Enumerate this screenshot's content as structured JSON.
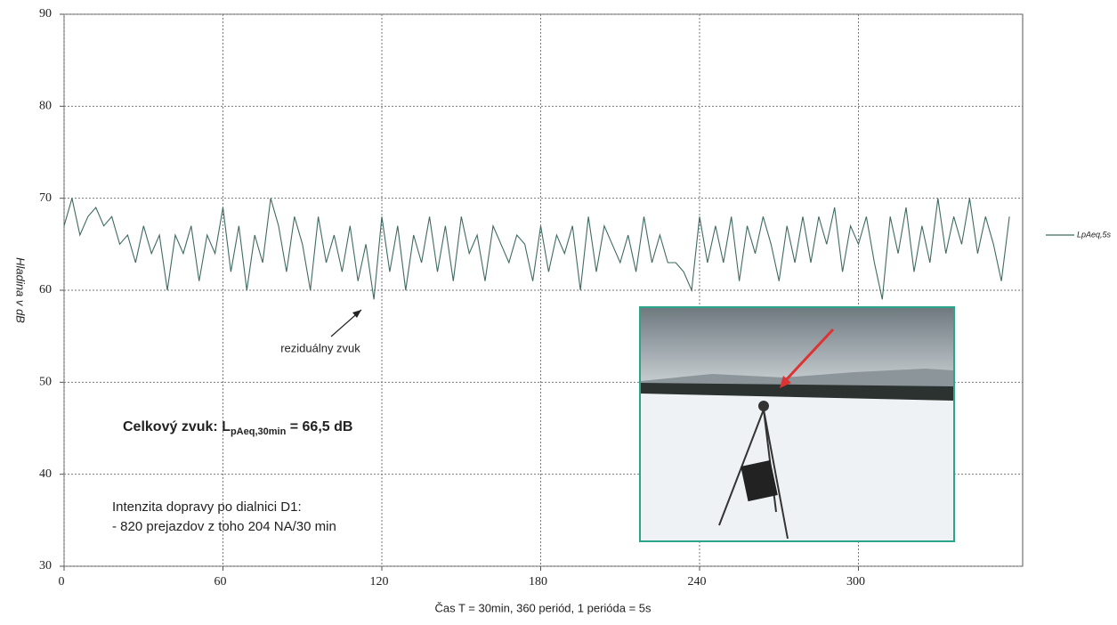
{
  "chart_data": {
    "type": "line",
    "y_label": "Hladina v dB",
    "x_label": "Čas T = 30min, 360 periód, 1 perióda = 5s",
    "annotations": {
      "residual": "reziduálny zvuk",
      "total_main": "Celkový zvuk: L",
      "total_sub": "pAeq,30min",
      "total_rest": " = 66,5 dB",
      "traffic_1": "Intenzita dopravy po dialnici D1:",
      "traffic_2": "- 820 prejazdov z toho 204 NA/30 min"
    },
    "xlim": [
      0,
      360
    ],
    "ylim": [
      30,
      90
    ],
    "xticks": [
      0,
      60,
      120,
      180,
      240,
      300
    ],
    "yticks": [
      30,
      40,
      50,
      60,
      70,
      80,
      90
    ],
    "grid": true,
    "legend": "right",
    "x": [
      0,
      3,
      6,
      9,
      12,
      15,
      18,
      21,
      24,
      27,
      30,
      33,
      36,
      39,
      42,
      45,
      48,
      51,
      54,
      57,
      60,
      63,
      66,
      69,
      72,
      75,
      78,
      81,
      84,
      87,
      90,
      93,
      96,
      99,
      102,
      105,
      108,
      111,
      114,
      117,
      120,
      123,
      126,
      129,
      132,
      135,
      138,
      141,
      144,
      147,
      150,
      153,
      156,
      159,
      162,
      165,
      168,
      171,
      174,
      177,
      180,
      183,
      186,
      189,
      192,
      195,
      198,
      201,
      204,
      207,
      210,
      213,
      216,
      219,
      222,
      225,
      228,
      231,
      234,
      237,
      240,
      243,
      246,
      249,
      252,
      255,
      258,
      261,
      264,
      267,
      270,
      273,
      276,
      279,
      282,
      285,
      288,
      291,
      294,
      297,
      300,
      303,
      306,
      309,
      312,
      315,
      318,
      321,
      324,
      327,
      330,
      333,
      336,
      339,
      342,
      345,
      348,
      351,
      354,
      357
    ],
    "series": [
      {
        "name": "LpAeq,5s",
        "color": "#3f6b62",
        "values": [
          67,
          70,
          66,
          68,
          69,
          67,
          68,
          65,
          66,
          63,
          67,
          64,
          66,
          60,
          66,
          64,
          67,
          61,
          66,
          64,
          69,
          62,
          67,
          60,
          66,
          63,
          70,
          67,
          62,
          68,
          65,
          60,
          68,
          63,
          66,
          62,
          67,
          61,
          65,
          59,
          68,
          62,
          67,
          60,
          66,
          63,
          68,
          62,
          67,
          61,
          68,
          64,
          66,
          61,
          67,
          65,
          63,
          66,
          65,
          61,
          67,
          62,
          66,
          64,
          67,
          60,
          68,
          62,
          67,
          65,
          63,
          66,
          62,
          68,
          63,
          66,
          63,
          63,
          62,
          60,
          68,
          63,
          67,
          63,
          68,
          61,
          67,
          64,
          68,
          65,
          61,
          67,
          63,
          68,
          63,
          68,
          65,
          69,
          62,
          67,
          65,
          68,
          63,
          59,
          68,
          64,
          69,
          62,
          67,
          63,
          70,
          64,
          68,
          65,
          70,
          64,
          68,
          65,
          61,
          68
        ]
      }
    ]
  }
}
